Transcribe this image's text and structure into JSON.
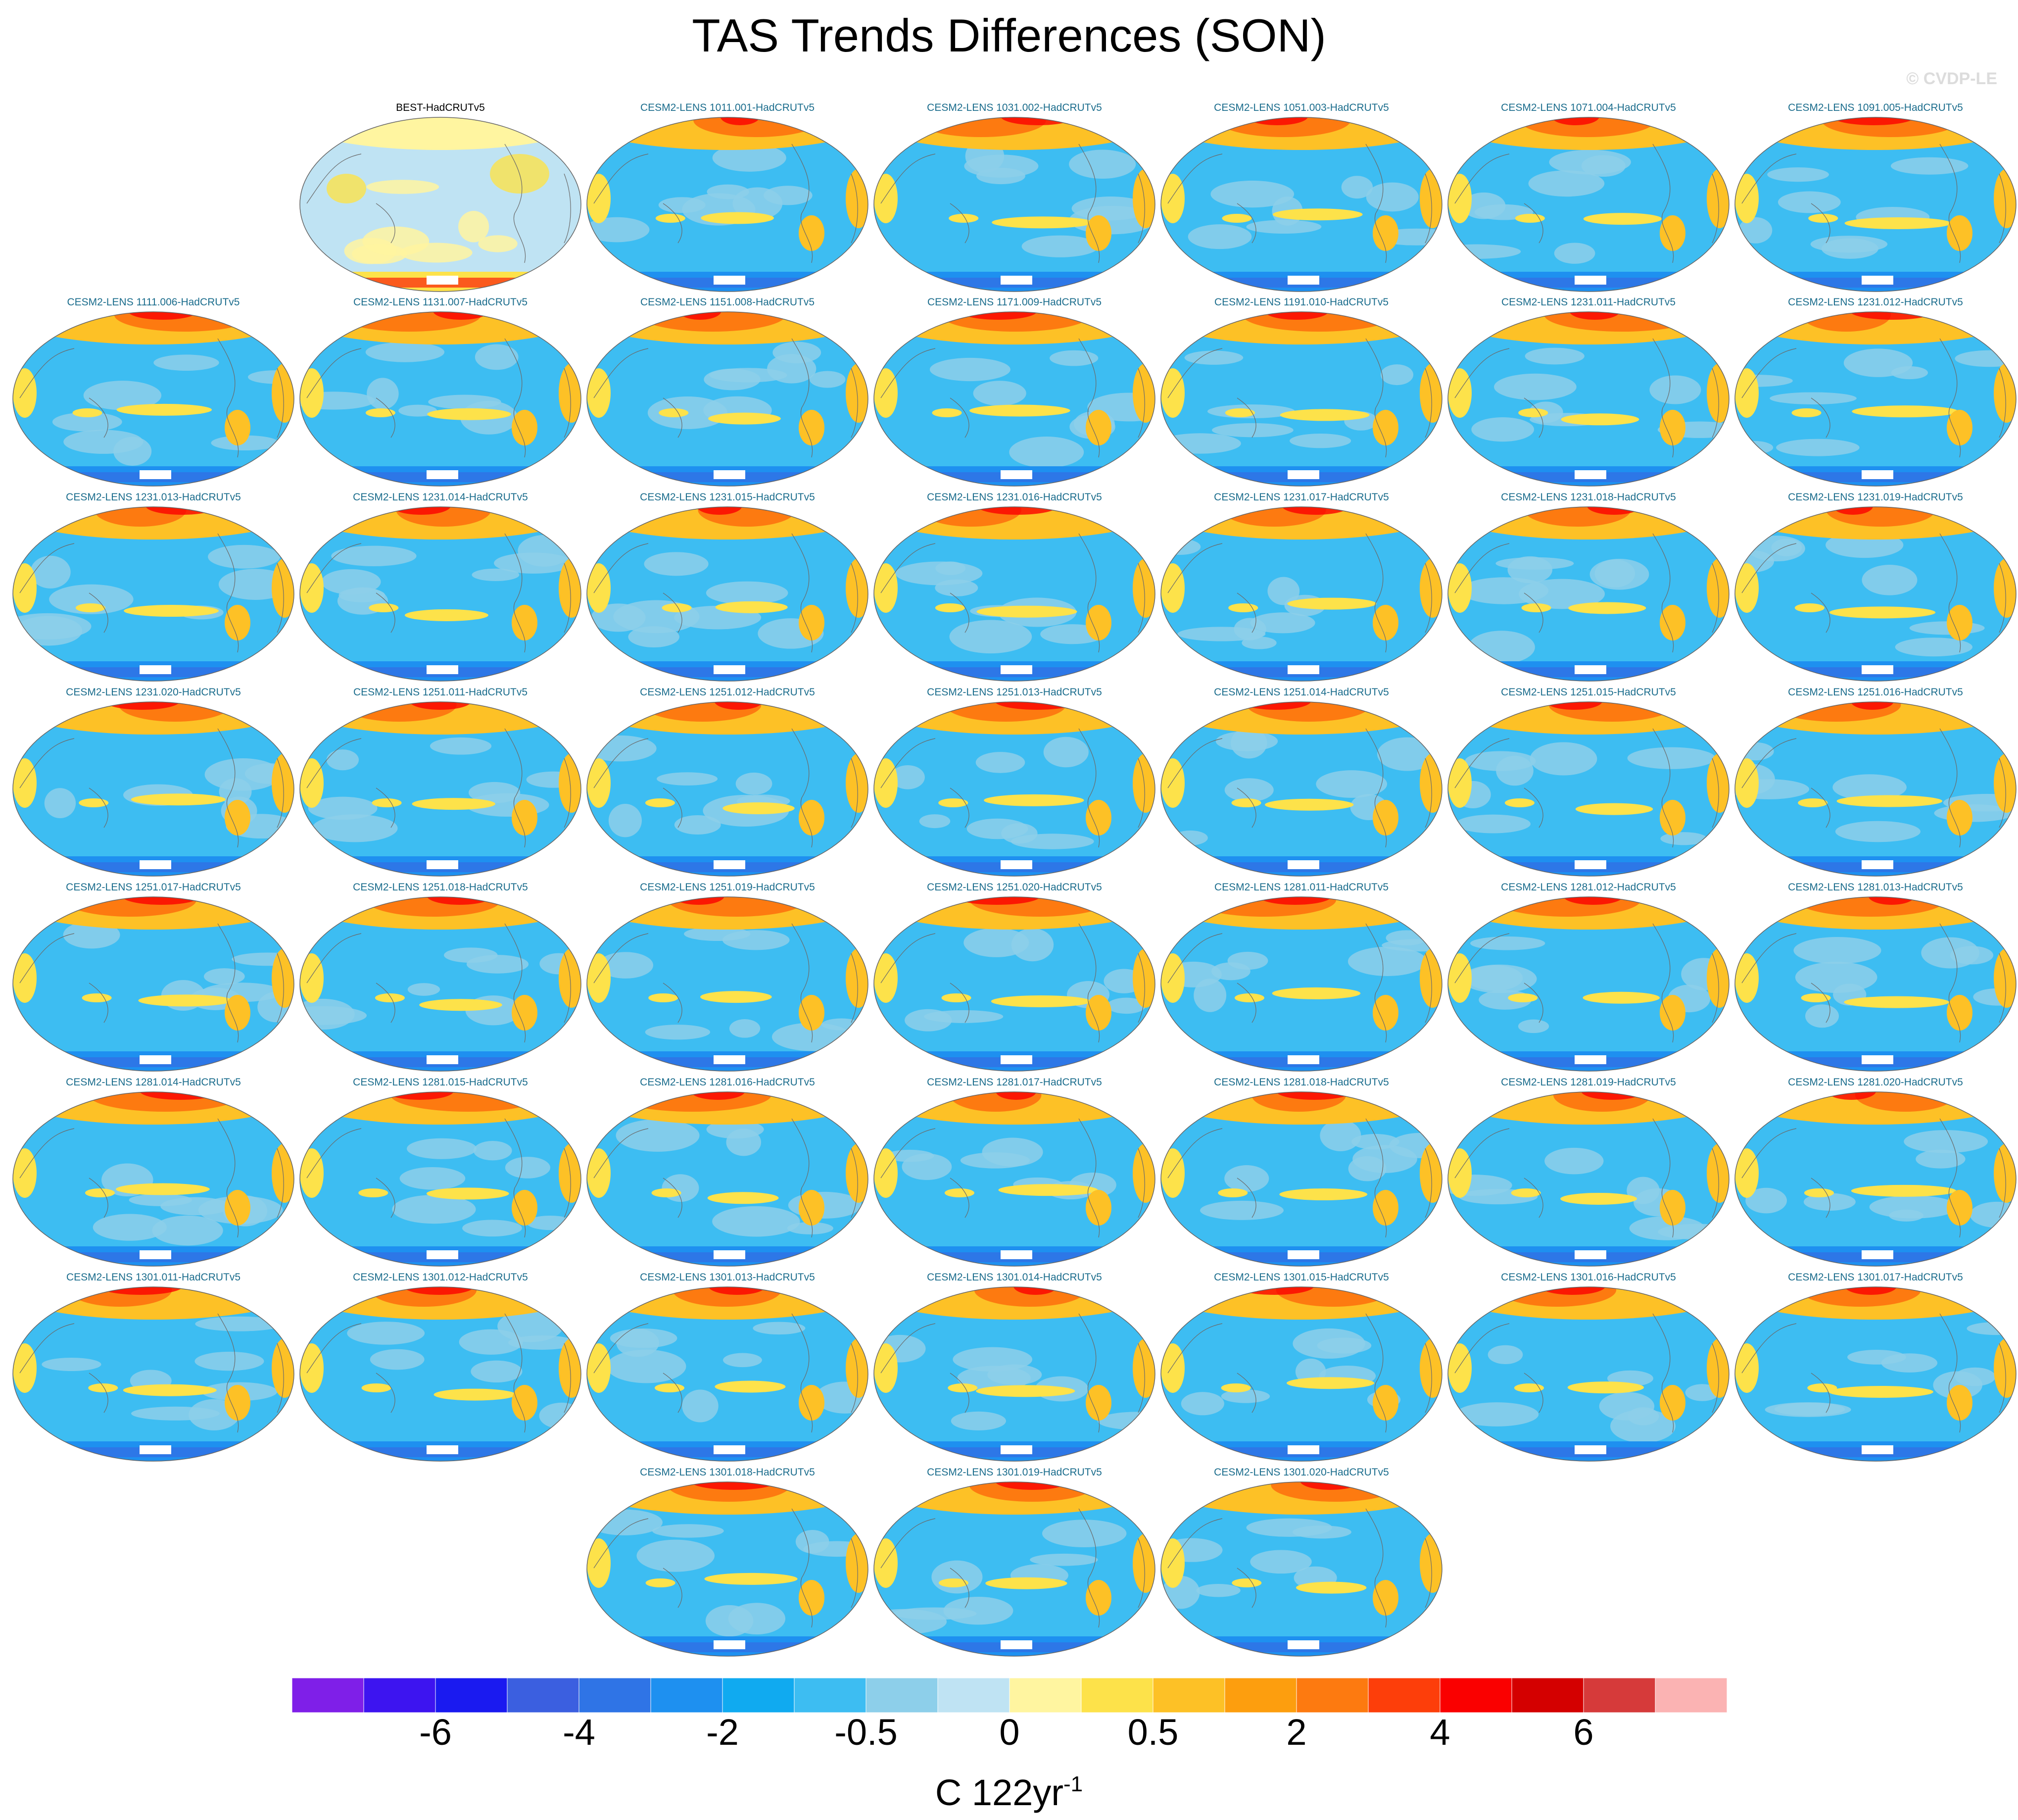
{
  "title": "TAS Trends Differences (SON)",
  "watermark": "© CVDP-LE",
  "colorbar": {
    "colors": [
      "#7f1fe8",
      "#3d14f0",
      "#1a1af0",
      "#3b5fe0",
      "#2f74e6",
      "#1e90f0",
      "#10aaf0",
      "#3dbdf2",
      "#8dcfea",
      "#bfe3f3",
      "#fff5a0",
      "#fde24a",
      "#fdc126",
      "#fd9e0e",
      "#fd7a10",
      "#fd3e0a",
      "#fa0000",
      "#d40000",
      "#d63a3a",
      "#fbb3b3"
    ],
    "tick_labels": [
      "-6",
      "-4",
      "-2",
      "-0.5",
      "0",
      "0.5",
      "2",
      "4",
      "6"
    ],
    "units_base": "C 122yr",
    "units_sup": "-1"
  },
  "panels": [
    {
      "label": "BEST-HadCRUTv5",
      "type": "observation"
    },
    {
      "label": "CESM2-LENS 1011.001-HadCRUTv5",
      "type": "member"
    },
    {
      "label": "CESM2-LENS 1031.002-HadCRUTv5",
      "type": "member"
    },
    {
      "label": "CESM2-LENS 1051.003-HadCRUTv5",
      "type": "member"
    },
    {
      "label": "CESM2-LENS 1071.004-HadCRUTv5",
      "type": "member"
    },
    {
      "label": "CESM2-LENS 1091.005-HadCRUTv5",
      "type": "member"
    },
    {
      "label": "CESM2-LENS 1111.006-HadCRUTv5",
      "type": "member"
    },
    {
      "label": "CESM2-LENS 1131.007-HadCRUTv5",
      "type": "member"
    },
    {
      "label": "CESM2-LENS 1151.008-HadCRUTv5",
      "type": "member"
    },
    {
      "label": "CESM2-LENS 1171.009-HadCRUTv5",
      "type": "member"
    },
    {
      "label": "CESM2-LENS 1191.010-HadCRUTv5",
      "type": "member"
    },
    {
      "label": "CESM2-LENS 1231.011-HadCRUTv5",
      "type": "member"
    },
    {
      "label": "CESM2-LENS 1231.012-HadCRUTv5",
      "type": "member"
    },
    {
      "label": "CESM2-LENS 1231.013-HadCRUTv5",
      "type": "member"
    },
    {
      "label": "CESM2-LENS 1231.014-HadCRUTv5",
      "type": "member"
    },
    {
      "label": "CESM2-LENS 1231.015-HadCRUTv5",
      "type": "member"
    },
    {
      "label": "CESM2-LENS 1231.016-HadCRUTv5",
      "type": "member"
    },
    {
      "label": "CESM2-LENS 1231.017-HadCRUTv5",
      "type": "member"
    },
    {
      "label": "CESM2-LENS 1231.018-HadCRUTv5",
      "type": "member"
    },
    {
      "label": "CESM2-LENS 1231.019-HadCRUTv5",
      "type": "member"
    },
    {
      "label": "CESM2-LENS 1231.020-HadCRUTv5",
      "type": "member"
    },
    {
      "label": "CESM2-LENS 1251.011-HadCRUTv5",
      "type": "member"
    },
    {
      "label": "CESM2-LENS 1251.012-HadCRUTv5",
      "type": "member"
    },
    {
      "label": "CESM2-LENS 1251.013-HadCRUTv5",
      "type": "member"
    },
    {
      "label": "CESM2-LENS 1251.014-HadCRUTv5",
      "type": "member"
    },
    {
      "label": "CESM2-LENS 1251.015-HadCRUTv5",
      "type": "member"
    },
    {
      "label": "CESM2-LENS 1251.016-HadCRUTv5",
      "type": "member"
    },
    {
      "label": "CESM2-LENS 1251.017-HadCRUTv5",
      "type": "member"
    },
    {
      "label": "CESM2-LENS 1251.018-HadCRUTv5",
      "type": "member"
    },
    {
      "label": "CESM2-LENS 1251.019-HadCRUTv5",
      "type": "member"
    },
    {
      "label": "CESM2-LENS 1251.020-HadCRUTv5",
      "type": "member"
    },
    {
      "label": "CESM2-LENS 1281.011-HadCRUTv5",
      "type": "member"
    },
    {
      "label": "CESM2-LENS 1281.012-HadCRUTv5",
      "type": "member"
    },
    {
      "label": "CESM2-LENS 1281.013-HadCRUTv5",
      "type": "member"
    },
    {
      "label": "CESM2-LENS 1281.014-HadCRUTv5",
      "type": "member"
    },
    {
      "label": "CESM2-LENS 1281.015-HadCRUTv5",
      "type": "member"
    },
    {
      "label": "CESM2-LENS 1281.016-HadCRUTv5",
      "type": "member"
    },
    {
      "label": "CESM2-LENS 1281.017-HadCRUTv5",
      "type": "member"
    },
    {
      "label": "CESM2-LENS 1281.018-HadCRUTv5",
      "type": "member"
    },
    {
      "label": "CESM2-LENS 1281.019-HadCRUTv5",
      "type": "member"
    },
    {
      "label": "CESM2-LENS 1281.020-HadCRUTv5",
      "type": "member"
    },
    {
      "label": "CESM2-LENS 1301.011-HadCRUTv5",
      "type": "member"
    },
    {
      "label": "CESM2-LENS 1301.012-HadCRUTv5",
      "type": "member"
    },
    {
      "label": "CESM2-LENS 1301.013-HadCRUTv5",
      "type": "member"
    },
    {
      "label": "CESM2-LENS 1301.014-HadCRUTv5",
      "type": "member"
    },
    {
      "label": "CESM2-LENS 1301.015-HadCRUTv5",
      "type": "member"
    },
    {
      "label": "CESM2-LENS 1301.016-HadCRUTv5",
      "type": "member"
    },
    {
      "label": "CESM2-LENS 1301.017-HadCRUTv5",
      "type": "member"
    },
    {
      "label": "CESM2-LENS 1301.018-HadCRUTv5",
      "type": "member"
    },
    {
      "label": "CESM2-LENS 1301.019-HadCRUTv5",
      "type": "member"
    },
    {
      "label": "CESM2-LENS 1301.020-HadCRUTv5",
      "type": "member"
    }
  ]
}
